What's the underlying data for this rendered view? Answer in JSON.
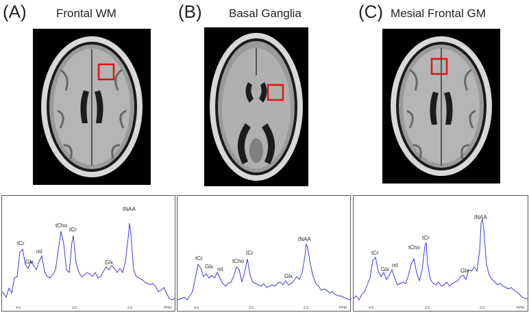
{
  "panels": [
    {
      "letter": "(A)",
      "title": "Frontal WM",
      "peaks": {
        "tCr": "tCr",
        "Glx1": "Glx",
        "mI": "mI",
        "tCho": "tCho",
        "tCr2": "tCr",
        "Glx2": "Glx",
        "tNAA": "tNAA"
      },
      "ticks": [
        "4.0",
        "3.0",
        "2.0",
        "PPM"
      ]
    },
    {
      "letter": "(B)",
      "title": "Basal Ganglia",
      "peaks": {
        "tCr": "tCr",
        "Glx1": "Glx",
        "mI": "mI",
        "tCho": "tCho",
        "tCr2": "tCr",
        "Glx2": "Glx",
        "tNAA": "tNAA"
      },
      "ticks": [
        "4.0",
        "3.0",
        "2.0",
        "PPM"
      ]
    },
    {
      "letter": "(C)",
      "title": "Mesial Frontal GM",
      "peaks": {
        "tCr": "tCr",
        "Glx1": "Glx",
        "mI": "mI",
        "tCho": "tCho",
        "tCr2": "tCr",
        "Glx2": "Glx",
        "tNAA": "tNAA"
      },
      "ticks": [
        "4.0",
        "3.0",
        "2.0",
        "PPM"
      ]
    }
  ],
  "colors": {
    "spectrum": "#3b3bd6",
    "roi": "#e01010"
  }
}
